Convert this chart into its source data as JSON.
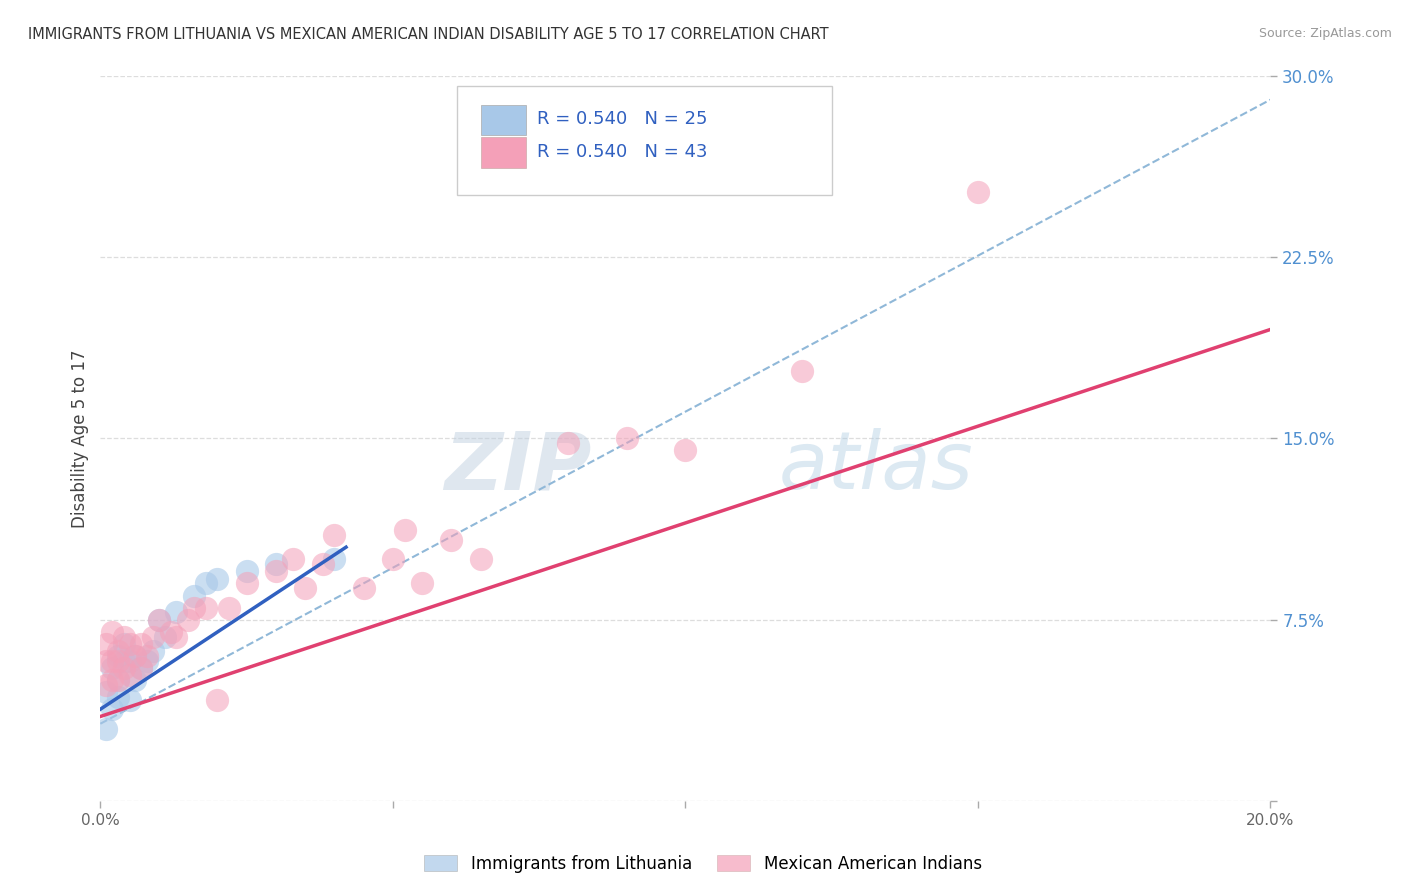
{
  "title": "IMMIGRANTS FROM LITHUANIA VS MEXICAN AMERICAN INDIAN DISABILITY AGE 5 TO 17 CORRELATION CHART",
  "source": "Source: ZipAtlas.com",
  "ylabel": "Disability Age 5 to 17",
  "xlim": [
    0.0,
    0.2
  ],
  "ylim": [
    0.0,
    0.3
  ],
  "xticks": [
    0.0,
    0.05,
    0.1,
    0.15,
    0.2
  ],
  "xticklabels": [
    "0.0%",
    "",
    "",
    "",
    "20.0%"
  ],
  "yticks_right": [
    0.0,
    0.075,
    0.15,
    0.225,
    0.3
  ],
  "yticklabels_right": [
    "",
    "7.5%",
    "15.0%",
    "22.5%",
    "30.0%"
  ],
  "blue_R": 0.54,
  "blue_N": 25,
  "pink_R": 0.54,
  "pink_N": 43,
  "blue_color": "#a8c8e8",
  "pink_color": "#f4a0b8",
  "blue_line_color": "#3060c0",
  "pink_line_color": "#e04070",
  "dashed_line_color": "#90b8d8",
  "watermark_zip": "ZIP",
  "watermark_atlas": "atlas",
  "legend_label_blue": "Immigrants from Lithuania",
  "legend_label_pink": "Mexican American Indians",
  "blue_points_x": [
    0.001,
    0.001,
    0.002,
    0.002,
    0.003,
    0.003,
    0.003,
    0.004,
    0.004,
    0.005,
    0.005,
    0.006,
    0.006,
    0.007,
    0.008,
    0.009,
    0.01,
    0.011,
    0.013,
    0.016,
    0.018,
    0.02,
    0.025,
    0.03,
    0.04
  ],
  "blue_points_y": [
    0.03,
    0.045,
    0.055,
    0.038,
    0.05,
    0.06,
    0.043,
    0.058,
    0.065,
    0.042,
    0.058,
    0.05,
    0.06,
    0.055,
    0.058,
    0.062,
    0.075,
    0.068,
    0.078,
    0.085,
    0.09,
    0.092,
    0.095,
    0.098,
    0.1
  ],
  "pink_points_x": [
    0.001,
    0.001,
    0.001,
    0.002,
    0.002,
    0.002,
    0.003,
    0.003,
    0.003,
    0.004,
    0.004,
    0.005,
    0.005,
    0.006,
    0.007,
    0.007,
    0.008,
    0.009,
    0.01,
    0.012,
    0.013,
    0.015,
    0.016,
    0.018,
    0.02,
    0.022,
    0.025,
    0.03,
    0.033,
    0.035,
    0.038,
    0.04,
    0.045,
    0.05,
    0.052,
    0.055,
    0.06,
    0.065,
    0.08,
    0.09,
    0.1,
    0.12,
    0.15
  ],
  "pink_points_y": [
    0.048,
    0.058,
    0.065,
    0.05,
    0.058,
    0.07,
    0.05,
    0.058,
    0.062,
    0.055,
    0.068,
    0.052,
    0.065,
    0.06,
    0.055,
    0.065,
    0.06,
    0.068,
    0.075,
    0.07,
    0.068,
    0.075,
    0.08,
    0.08,
    0.042,
    0.08,
    0.09,
    0.095,
    0.1,
    0.088,
    0.098,
    0.11,
    0.088,
    0.1,
    0.112,
    0.09,
    0.108,
    0.1,
    0.148,
    0.15,
    0.145,
    0.178,
    0.252
  ],
  "blue_line_x0": 0.0,
  "blue_line_x1": 0.042,
  "blue_line_y0": 0.038,
  "blue_line_y1": 0.105,
  "pink_line_x0": 0.0,
  "pink_line_x1": 0.2,
  "pink_line_y0": 0.035,
  "pink_line_y1": 0.195,
  "dashed_line_x0": 0.0,
  "dashed_line_x1": 0.2,
  "dashed_line_y0": 0.032,
  "dashed_line_y1": 0.29,
  "background_color": "#ffffff",
  "grid_color": "#dddddd",
  "tick_color": "#aaaaaa",
  "right_tick_color": "#5090d0"
}
